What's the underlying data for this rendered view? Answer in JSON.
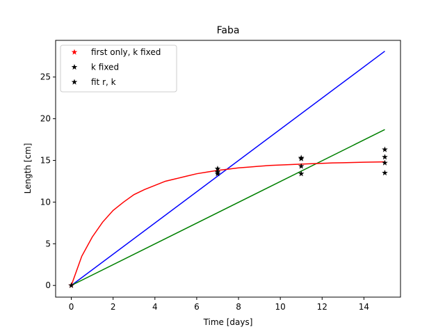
{
  "chart_data": {
    "type": "line",
    "title": "Faba",
    "xlabel": "Time [days]",
    "ylabel": "Length [cm]",
    "xlim": [
      -0.75,
      15.75
    ],
    "ylim": [
      -1.4,
      29.4
    ],
    "xticks": [
      0,
      2,
      4,
      6,
      8,
      10,
      12,
      14
    ],
    "yticks": [
      0,
      5,
      10,
      15,
      20,
      25
    ],
    "grid": false,
    "legend_position": "upper-left",
    "legend": [
      {
        "label": "first only, k fixed",
        "marker": "star",
        "color": "#ff0000"
      },
      {
        "label": "k fixed",
        "marker": "star",
        "color": "#000000"
      },
      {
        "label": "fit r, k",
        "marker": "star",
        "color": "#000000"
      }
    ],
    "points": [
      {
        "color": "#ff0000",
        "x": [
          0
        ],
        "y": [
          0
        ]
      },
      {
        "color": "#000000",
        "x": [
          0,
          7,
          7,
          7,
          11,
          11,
          11,
          11,
          15,
          15,
          15,
          15
        ],
        "y": [
          0,
          14.0,
          13.4,
          13.6,
          15.3,
          15.2,
          14.3,
          13.4,
          16.3,
          15.4,
          14.7,
          13.5
        ]
      }
    ],
    "series": [
      {
        "color": "#0000ff",
        "x": [
          0,
          15
        ],
        "y": [
          0,
          28.1
        ]
      },
      {
        "color": "#008000",
        "x": [
          0,
          15
        ],
        "y": [
          0,
          18.7
        ]
      },
      {
        "color": "#ff0000",
        "x": [
          0,
          0.5,
          1,
          1.5,
          2,
          2.5,
          3,
          3.5,
          4,
          4.5,
          5,
          5.5,
          6,
          6.5,
          7,
          7.5,
          8,
          8.5,
          9,
          9.5,
          10,
          10.5,
          11,
          11.5,
          12,
          12.5,
          13,
          13.5,
          14,
          14.5,
          15
        ],
        "y": [
          0,
          3.5,
          5.8,
          7.6,
          9.0,
          10.0,
          10.9,
          11.5,
          12.0,
          12.5,
          12.8,
          13.1,
          13.4,
          13.6,
          13.8,
          13.95,
          14.1,
          14.2,
          14.3,
          14.4,
          14.45,
          14.5,
          14.55,
          14.6,
          14.65,
          14.7,
          14.72,
          14.75,
          14.78,
          14.8,
          14.82
        ]
      }
    ]
  }
}
